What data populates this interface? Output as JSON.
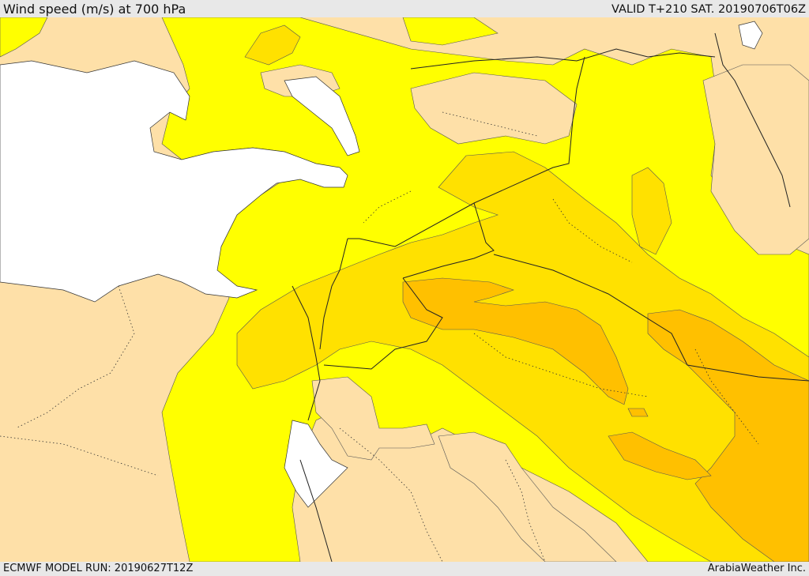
{
  "header": {
    "title": "Wind speed (m/s) at 700 hPa",
    "valid": "VALID T+210 SAT. 20190706T06Z"
  },
  "footer": {
    "model_run": "ECMWF MODEL RUN: 20190627T12Z",
    "credit": "ArabiaWeather Inc."
  },
  "colors": {
    "land_calm": "#fee0a8",
    "band1": "#ffff00",
    "band2": "#ffe100",
    "band3": "#ffc000",
    "sea": "#ffffff",
    "lines": "#222222"
  }
}
